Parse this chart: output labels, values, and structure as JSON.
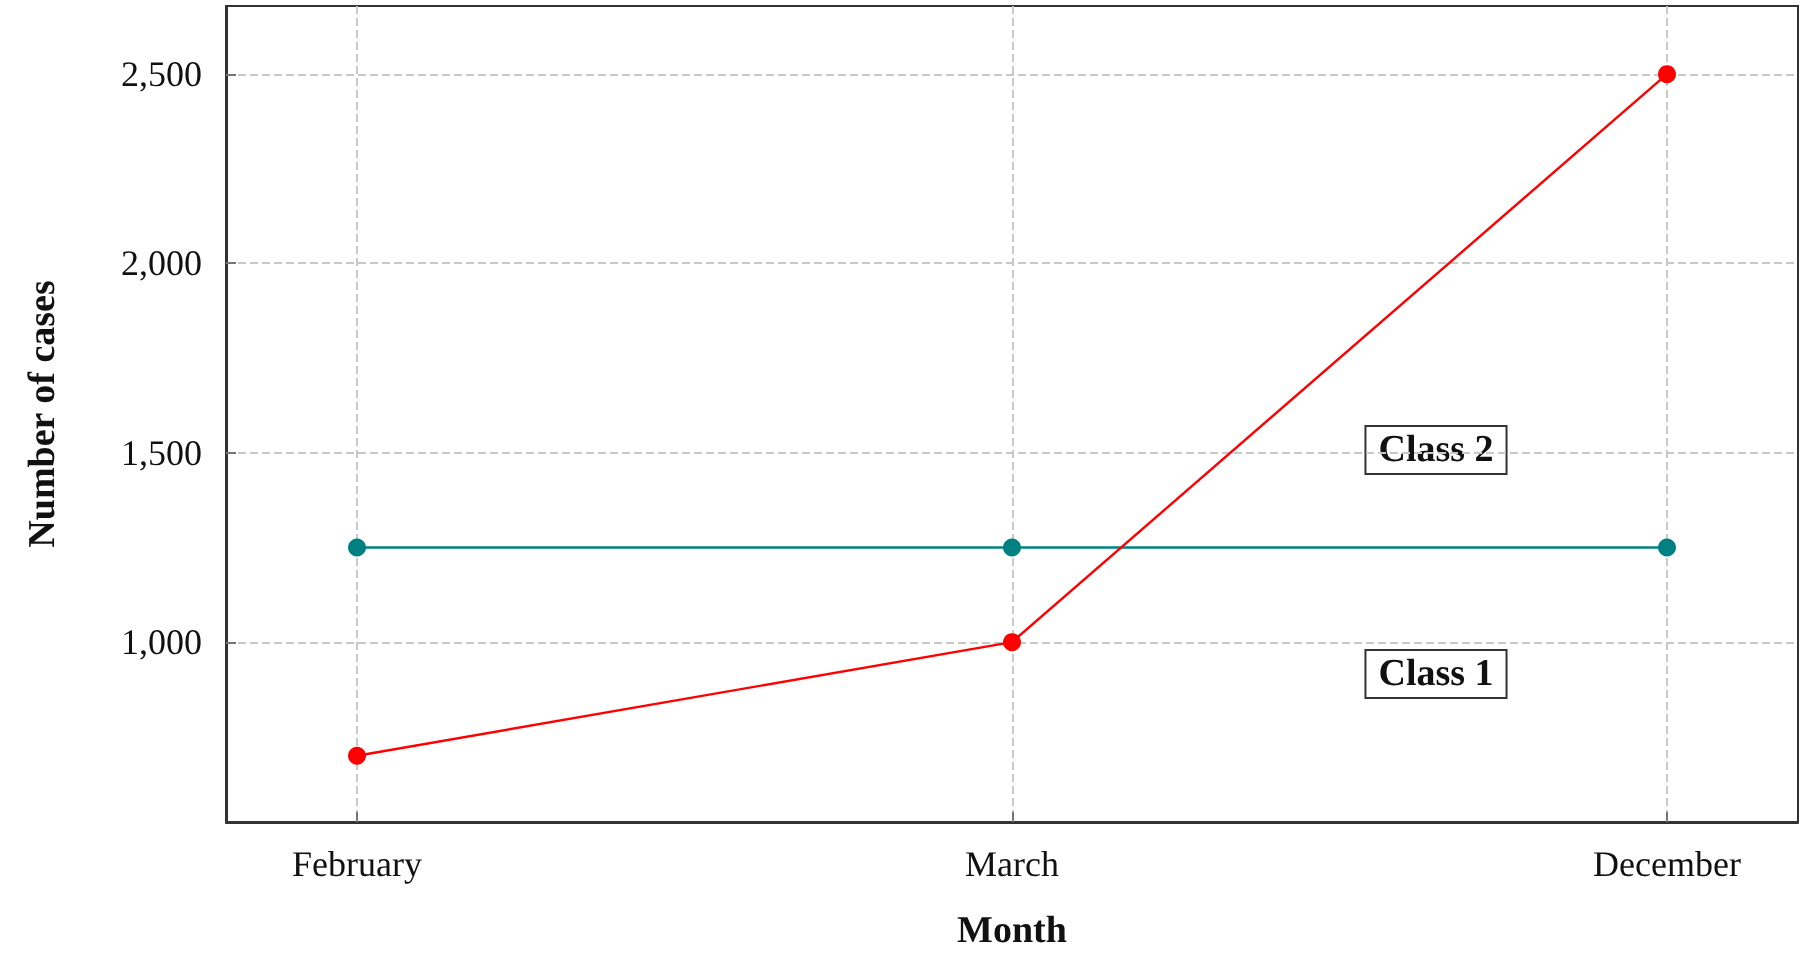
{
  "chart_data": {
    "type": "line",
    "xlabel": "Month",
    "ylabel": "Number of cases",
    "categories": [
      "February",
      "March",
      "December"
    ],
    "series": [
      {
        "color": "#008080",
        "values": [
          1250,
          1250,
          1250
        ]
      },
      {
        "color": "#ff0000",
        "values": [
          700,
          1000,
          2500
        ]
      }
    ],
    "ylim": [
      525,
      2680
    ],
    "yticks": [
      {
        "value": 1000,
        "label": "1,000"
      },
      {
        "value": 1500,
        "label": "1,500"
      },
      {
        "value": 2000,
        "label": "2,000"
      },
      {
        "value": 2500,
        "label": "2,500"
      }
    ],
    "grid": true,
    "marker": "circle",
    "line_style": "solid",
    "annotations": [
      "Class 2",
      "Class 1"
    ]
  }
}
